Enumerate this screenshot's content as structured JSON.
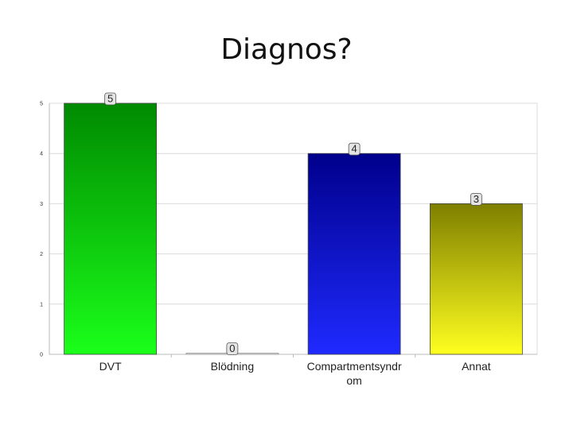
{
  "slide": {
    "title": "Diagnos?"
  },
  "chart_data": {
    "type": "bar",
    "title": "Diagnos?",
    "xlabel": "",
    "ylabel": "",
    "categories": [
      "DVT",
      "Blödning",
      "Compartmentsyndrom",
      "Annat"
    ],
    "category_label_lines": [
      [
        "DVT"
      ],
      [
        "Blödning"
      ],
      [
        "Compartmentsyndr",
        "om"
      ],
      [
        "Annat"
      ]
    ],
    "values": [
      5,
      0,
      4,
      3
    ],
    "ylim": [
      0,
      5
    ],
    "yticks": [
      0,
      1,
      2,
      3,
      4,
      5
    ],
    "grid": true,
    "legend": "none",
    "colors": [
      {
        "top": "#008a00",
        "bottom": "#1aff1a"
      },
      {
        "top": "#d0d0d0",
        "bottom": "#e8e8e8"
      },
      {
        "top": "#00008b",
        "bottom": "#1f2aff"
      },
      {
        "top": "#7f7f00",
        "bottom": "#ffff20"
      }
    ]
  }
}
